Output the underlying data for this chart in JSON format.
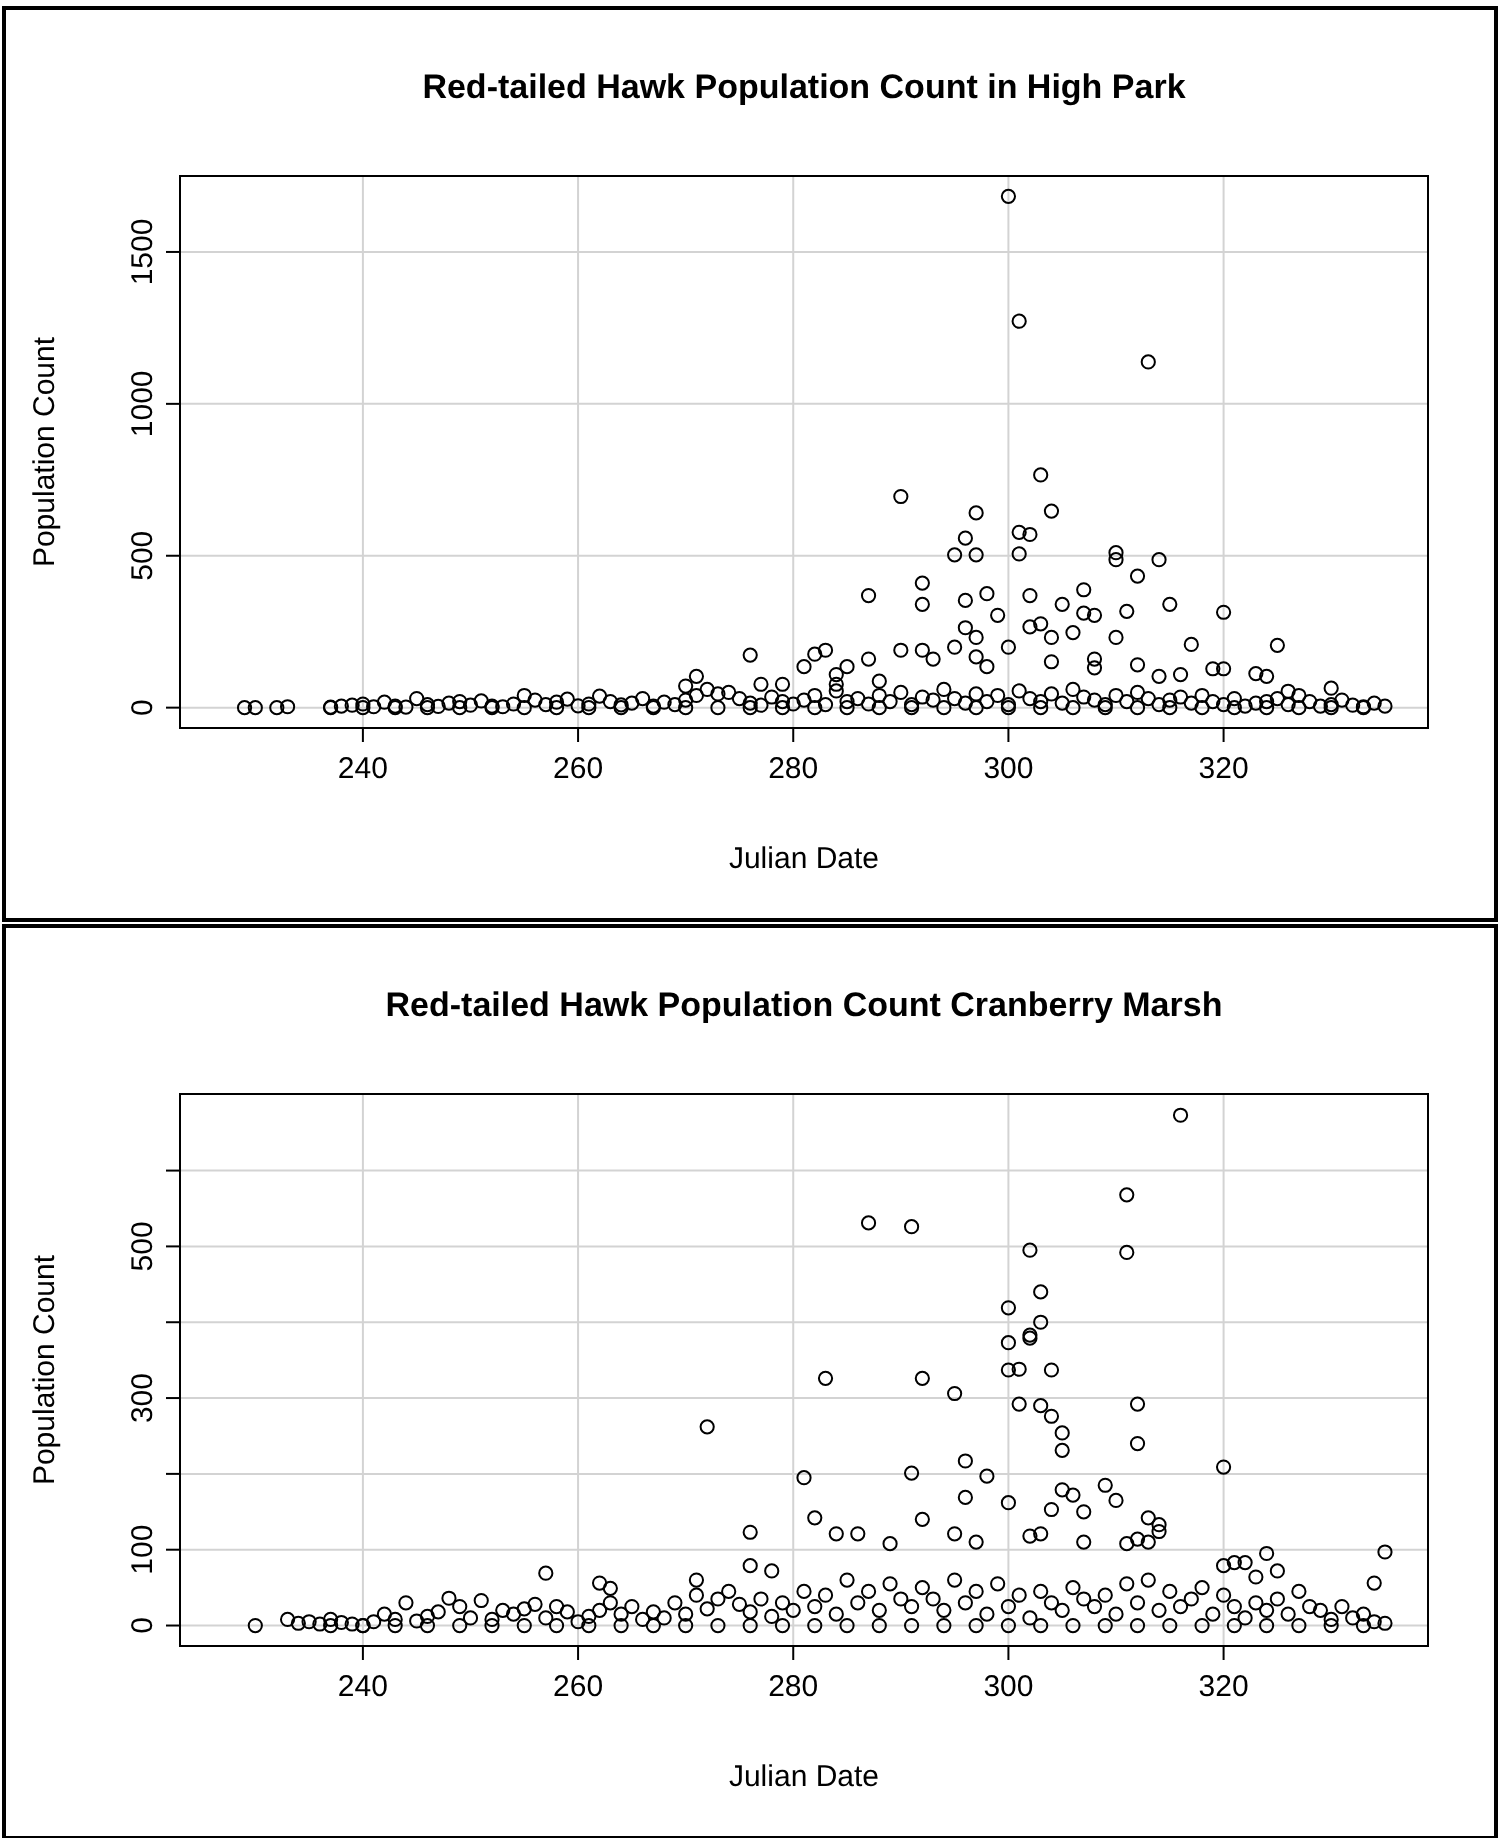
{
  "chart_data": [
    {
      "type": "scatter",
      "title": "Red-tailed Hawk Population Count in High Park",
      "xlabel": "Julian Date",
      "ylabel": "Population Count",
      "xlim": [
        223,
        339
      ],
      "ylim": [
        -67,
        1750
      ],
      "xticks": [
        240,
        260,
        280,
        300,
        320
      ],
      "yticks": [
        0,
        500,
        1000,
        1500
      ],
      "grid": true,
      "marker": "circle",
      "series": [
        {
          "color": "#000000",
          "x": [
            300,
            301,
            313,
            303,
            290,
            304,
            297,
            301,
            302,
            296,
            295,
            297,
            301,
            310,
            310,
            314,
            312,
            292,
            287,
            302,
            298,
            307,
            292,
            305,
            315,
            299,
            307,
            308,
            320,
            296,
            311,
            303,
            302,
            296,
            297,
            304,
            317,
            325,
            276,
            290,
            292,
            295,
            300,
            310,
            306,
            283,
            282,
            297,
            308,
            293,
            287,
            319,
            320,
            281,
            323,
            324,
            314,
            316,
            298,
            308,
            270,
            271,
            277,
            279,
            284,
            288,
            330,
            326,
            284,
            285,
            304,
            312,
            229,
            230,
            232,
            233,
            237,
            238,
            239,
            240,
            241,
            242,
            243,
            244,
            245,
            246,
            247,
            248,
            249,
            250,
            251,
            252,
            253,
            254,
            255,
            256,
            257,
            258,
            259,
            260,
            261,
            262,
            263,
            264,
            265,
            266,
            267,
            268,
            269,
            270,
            271,
            272,
            273,
            274,
            275,
            276,
            277,
            278,
            279,
            280,
            281,
            282,
            283,
            284,
            285,
            286,
            287,
            288,
            289,
            290,
            291,
            292,
            293,
            294,
            295,
            296,
            297,
            298,
            299,
            300,
            301,
            302,
            303,
            304,
            305,
            306,
            307,
            308,
            309,
            310,
            311,
            312,
            313,
            314,
            315,
            316,
            317,
            318,
            319,
            320,
            321,
            322,
            323,
            324,
            325,
            326,
            327,
            328,
            329,
            330,
            331,
            332,
            333,
            334,
            335,
            237,
            240,
            243,
            246,
            249,
            252,
            255,
            258,
            261,
            264,
            267,
            270,
            273,
            276,
            279,
            282,
            285,
            288,
            291,
            294,
            297,
            300,
            303,
            306,
            309,
            312,
            315,
            318,
            321,
            324,
            327,
            330,
            333
          ],
          "values": [
            1683,
            1272,
            1138,
            766,
            695,
            647,
            641,
            577,
            570,
            558,
            503,
            503,
            506,
            510,
            487,
            487,
            433,
            410,
            369,
            369,
            375,
            388,
            340,
            340,
            340,
            304,
            311,
            304,
            314,
            353,
            317,
            276,
            266,
            263,
            231,
            231,
            208,
            205,
            173,
            189,
            189,
            199,
            199,
            231,
            247,
            189,
            176,
            167,
            160,
            160,
            160,
            128,
            128,
            135,
            112,
            103,
            103,
            109,
            135,
            131,
            71,
            103,
            77,
            77,
            77,
            87,
            64,
            54,
            109,
            135,
            151,
            141,
            0,
            0,
            0,
            3,
            2,
            5,
            8,
            12,
            3,
            18,
            5,
            2,
            30,
            10,
            4,
            15,
            20,
            8,
            22,
            5,
            3,
            12,
            40,
            25,
            10,
            18,
            28,
            6,
            12,
            38,
            20,
            9,
            15,
            30,
            5,
            18,
            10,
            25,
            40,
            60,
            45,
            50,
            30,
            15,
            8,
            35,
            20,
            12,
            25,
            40,
            10,
            55,
            20,
            30,
            12,
            40,
            20,
            50,
            10,
            35,
            25,
            60,
            30,
            15,
            45,
            20,
            40,
            10,
            55,
            30,
            20,
            45,
            15,
            60,
            35,
            25,
            10,
            40,
            20,
            50,
            30,
            10,
            25,
            35,
            15,
            40,
            20,
            10,
            30,
            5,
            15,
            20,
            30,
            10,
            40,
            20,
            5,
            10,
            25,
            8,
            3,
            15,
            5,
            0,
            0,
            0,
            0,
            0,
            0,
            0,
            0,
            0,
            0,
            0,
            0,
            0,
            0,
            0,
            0,
            0,
            0,
            0,
            0,
            0,
            0,
            0,
            0,
            0,
            0,
            0,
            0,
            0,
            0,
            0,
            0,
            0
          ]
        }
      ]
    },
    {
      "type": "scatter",
      "title": "Red-tailed Hawk Population Count Cranberry Marsh",
      "xlabel": "Julian Date",
      "ylabel": "Population Count",
      "xlim": [
        223,
        339
      ],
      "ylim": [
        -27,
        701
      ],
      "xticks": [
        240,
        260,
        280,
        300,
        320
      ],
      "yticks": [
        0,
        100,
        {
          "value": 200,
          "label": null
        },
        300,
        {
          "value": 400,
          "label": null
        },
        500,
        {
          "value": 600,
          "label": null
        }
      ],
      "grid": true,
      "marker": "circle",
      "series": [
        {
          "color": "#000000",
          "x": [
            316,
            311,
            287,
            291,
            302,
            311,
            303,
            300,
            303,
            302,
            302,
            300,
            300,
            301,
            304,
            283,
            292,
            295,
            301,
            303,
            312,
            304,
            305,
            305,
            312,
            272,
            296,
            320,
            281,
            291,
            298,
            305,
            309,
            296,
            306,
            300,
            310,
            304,
            307,
            282,
            292,
            313,
            314,
            314,
            311,
            276,
            284,
            286,
            295,
            297,
            302,
            303,
            307,
            312,
            313,
            289,
            335,
            324,
            320,
            321,
            322,
            325,
            257,
            276,
            278,
            334,
            323,
            262,
            263,
            271,
            230,
            233,
            234,
            235,
            236,
            237,
            238,
            239,
            240,
            241,
            242,
            243,
            244,
            245,
            246,
            247,
            248,
            249,
            250,
            251,
            252,
            253,
            254,
            255,
            256,
            257,
            258,
            259,
            260,
            261,
            262,
            263,
            264,
            265,
            266,
            267,
            268,
            269,
            270,
            271,
            272,
            273,
            274,
            275,
            276,
            277,
            278,
            279,
            280,
            281,
            282,
            283,
            284,
            285,
            286,
            287,
            288,
            289,
            290,
            291,
            292,
            293,
            294,
            295,
            296,
            297,
            298,
            299,
            300,
            301,
            302,
            303,
            304,
            305,
            306,
            307,
            308,
            309,
            310,
            311,
            312,
            313,
            314,
            315,
            316,
            317,
            318,
            319,
            320,
            321,
            322,
            323,
            324,
            325,
            326,
            327,
            328,
            329,
            330,
            331,
            332,
            333,
            334,
            335,
            237,
            240,
            243,
            246,
            249,
            252,
            255,
            258,
            261,
            264,
            267,
            270,
            273,
            276,
            279,
            282,
            285,
            288,
            291,
            294,
            297,
            300,
            303,
            306,
            309,
            312,
            315,
            318,
            321,
            324,
            327,
            330,
            333
          ],
          "values": [
            673,
            568,
            531,
            526,
            495,
            492,
            440,
            419,
            400,
            383,
            379,
            373,
            337,
            338,
            337,
            326,
            326,
            306,
            292,
            290,
            292,
            276,
            254,
            231,
            240,
            262,
            217,
            209,
            195,
            201,
            197,
            179,
            185,
            169,
            172,
            162,
            165,
            153,
            150,
            142,
            140,
            142,
            133,
            124,
            108,
            123,
            121,
            121,
            121,
            110,
            118,
            121,
            110,
            114,
            110,
            108,
            97,
            95,
            79,
            83,
            83,
            72,
            69,
            79,
            72,
            56,
            64,
            56,
            49,
            60,
            0,
            8,
            3,
            5,
            2,
            8,
            4,
            2,
            0,
            5,
            15,
            8,
            30,
            6,
            12,
            18,
            36,
            25,
            10,
            33,
            8,
            20,
            15,
            22,
            28,
            10,
            25,
            18,
            5,
            12,
            20,
            30,
            15,
            25,
            8,
            18,
            10,
            30,
            15,
            40,
            22,
            35,
            45,
            28,
            18,
            35,
            12,
            30,
            20,
            45,
            25,
            40,
            15,
            60,
            30,
            45,
            20,
            55,
            35,
            25,
            50,
            35,
            20,
            60,
            30,
            45,
            15,
            55,
            25,
            40,
            10,
            45,
            30,
            20,
            50,
            35,
            25,
            40,
            15,
            55,
            30,
            60,
            20,
            45,
            25,
            35,
            50,
            15,
            40,
            25,
            10,
            30,
            20,
            35,
            15,
            45,
            25,
            20,
            8,
            25,
            10,
            15,
            5,
            3,
            0,
            0,
            0,
            0,
            0,
            0,
            0,
            0,
            0,
            0,
            0,
            0,
            0,
            0,
            0,
            0,
            0,
            0,
            0,
            0,
            0,
            0,
            0,
            0,
            0,
            0,
            0,
            0,
            0,
            0,
            0,
            0,
            0
          ]
        }
      ]
    }
  ]
}
